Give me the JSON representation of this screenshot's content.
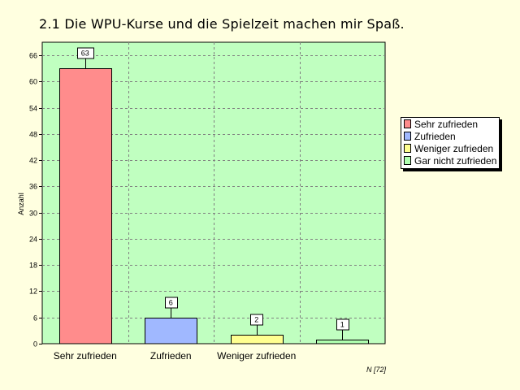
{
  "title": "2.1  Die WPU-Kurse und die Spielzeit machen mir Spaß.",
  "note": "N [72]",
  "colors": {
    "background": "#ffffe0",
    "plot_area": "#c0ffc0",
    "grid": "#808080"
  },
  "chart_data": {
    "type": "bar",
    "categories": [
      "Sehr zufrieden",
      "Zufrieden",
      "Weniger zufrieden",
      ""
    ],
    "values": [
      63,
      6,
      2,
      1
    ],
    "data_labels": [
      "63",
      "6",
      "2",
      "1"
    ],
    "bar_colors": [
      "#ff8c8c",
      "#a0b8ff",
      "#ffff90",
      "#b0ffb0"
    ],
    "xlabel": "",
    "ylabel": "Anzahl",
    "ylim": [
      0,
      69
    ],
    "yticks": [
      0,
      6,
      12,
      18,
      24,
      30,
      36,
      42,
      48,
      54,
      60,
      66
    ],
    "grid": true,
    "legend_position": "right",
    "legend": [
      "Sehr zufrieden",
      "Zufrieden",
      "Weniger zufrieden",
      "Gar nicht zufrieden"
    ]
  }
}
